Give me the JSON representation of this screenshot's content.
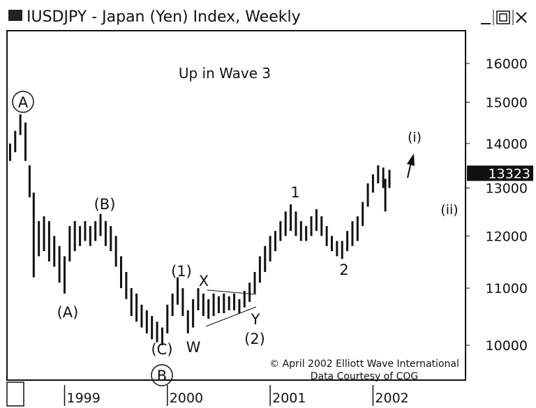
{
  "chart_data": {
    "type": "range_bar",
    "title": "IUSDJPY - Japan (Yen) Index, Weekly",
    "subtitle": "Up in Wave 3",
    "log_scale": true,
    "color": "#111111",
    "x": [
      1998.47,
      1998.52,
      1998.57,
      1998.62,
      1998.66,
      1998.7,
      1998.75,
      1998.8,
      1998.85,
      1998.9,
      1998.95,
      1999.0,
      1999.05,
      1999.1,
      1999.15,
      1999.2,
      1999.25,
      1999.3,
      1999.35,
      1999.4,
      1999.45,
      1999.5,
      1999.55,
      1999.6,
      1999.65,
      1999.7,
      1999.75,
      1999.8,
      1999.85,
      1999.9,
      1999.95,
      2000.0,
      2000.05,
      2000.1,
      2000.15,
      2000.2,
      2000.25,
      2000.3,
      2000.35,
      2000.4,
      2000.45,
      2000.5,
      2000.55,
      2000.6,
      2000.65,
      2000.7,
      2000.75,
      2000.8,
      2000.85,
      2000.9,
      2000.95,
      2001.0,
      2001.05,
      2001.1,
      2001.15,
      2001.2,
      2001.25,
      2001.3,
      2001.35,
      2001.4,
      2001.45,
      2001.5,
      2001.55,
      2001.6,
      2001.65,
      2001.7,
      2001.75,
      2001.8,
      2001.85,
      2001.9,
      2001.95,
      2002.0,
      2002.05,
      2002.1,
      2002.12,
      2002.16
    ],
    "high": [
      14000,
      14300,
      14700,
      14500,
      13500,
      12900,
      12300,
      12400,
      12300,
      12000,
      11800,
      11600,
      12200,
      12300,
      12200,
      12300,
      12200,
      12300,
      12450,
      12300,
      12200,
      12000,
      11600,
      11300,
      11000,
      10900,
      10700,
      10600,
      10500,
      10400,
      10300,
      10700,
      10900,
      11200,
      11000,
      10600,
      10800,
      11000,
      10900,
      10800,
      10900,
      10850,
      10900,
      10850,
      10900,
      10800,
      10950,
      11100,
      11300,
      11600,
      11800,
      12000,
      12100,
      12300,
      12500,
      12650,
      12500,
      12300,
      12200,
      12400,
      12550,
      12400,
      12200,
      12000,
      11900,
      11900,
      12100,
      12300,
      12400,
      12700,
      13100,
      13300,
      13500,
      13450,
      13200,
      13400
    ],
    "low": [
      13600,
      13800,
      14200,
      13600,
      12800,
      11200,
      11600,
      11700,
      11500,
      11400,
      11100,
      10900,
      11500,
      11700,
      11800,
      11900,
      11800,
      11900,
      12000,
      11800,
      11700,
      11400,
      11000,
      10800,
      10500,
      10400,
      10300,
      10200,
      10100,
      10050,
      10000,
      10200,
      10500,
      10700,
      10500,
      10200,
      10300,
      10600,
      10500,
      10450,
      10500,
      10550,
      10550,
      10600,
      10600,
      10550,
      10650,
      10750,
      10900,
      11100,
      11300,
      11500,
      11700,
      11900,
      12000,
      12100,
      12000,
      11900,
      11900,
      12000,
      12100,
      12000,
      11800,
      11700,
      11600,
      11550,
      11700,
      11800,
      11900,
      12200,
      12600,
      12900,
      13100,
      13000,
      12500,
      13000
    ],
    "last": 13323,
    "xlim": [
      1998.44,
      2002.9
    ],
    "xticks": [
      {
        "value": 1999,
        "label": "1999"
      },
      {
        "value": 2000,
        "label": "2000"
      },
      {
        "value": 2001,
        "label": "2001"
      },
      {
        "value": 2002,
        "label": "2002"
      }
    ],
    "ylim": [
      9435,
      16900
    ],
    "yticks": [
      10000,
      11000,
      12000,
      13000,
      14000,
      15000,
      16000
    ],
    "annotations": [
      "A",
      "(B)",
      "(A)",
      "(C)",
      "B",
      "(1)",
      "W",
      "X",
      "Y",
      "(2)",
      "1",
      "2",
      "(i)",
      "(ii)"
    ],
    "credits": [
      "© April 2002 Elliott Wave International",
      "Data Courtesy of CQG"
    ]
  }
}
